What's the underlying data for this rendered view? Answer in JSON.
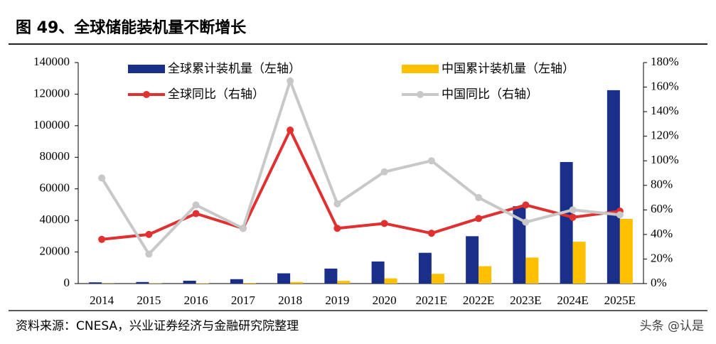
{
  "chart_data": {
    "type": "combo",
    "title": "图 49、全球储能装机量不断增长",
    "source": "资料来源：CNESA，兴业证券经济与金融研究院整理",
    "watermark": "头条 @认是",
    "categories": [
      "2014",
      "2015",
      "2016",
      "2017",
      "2018",
      "2019",
      "2020",
      "2021E",
      "2022E",
      "2023E",
      "2024E",
      "2025E"
    ],
    "series": [
      {
        "name": "全球累计装机量（左轴）",
        "type": "bar",
        "color": "#1a2f8a",
        "values": [
          800,
          1000,
          1800,
          2800,
          6500,
          9500,
          14000,
          19500,
          30000,
          49000,
          77000,
          122500
        ]
      },
      {
        "name": "中国累计装机量（左轴）",
        "type": "bar",
        "color": "#ffc000",
        "values": [
          100,
          150,
          250,
          400,
          1000,
          1700,
          3300,
          6200,
          11000,
          16500,
          26500,
          41000
        ]
      },
      {
        "name": "全球同比（右轴）",
        "type": "line",
        "axis": "y2",
        "color": "#e03030",
        "values": [
          36,
          40,
          57,
          45,
          125,
          45,
          49,
          41,
          53,
          64,
          54,
          59
        ]
      },
      {
        "name": "中国同比（右轴）",
        "type": "line",
        "axis": "y2",
        "color": "#c8c8c8",
        "values": [
          86,
          24,
          64,
          45,
          165,
          65,
          91,
          100,
          70,
          50,
          60,
          56
        ]
      }
    ],
    "ylim": [
      0,
      140000
    ],
    "yticks": [
      0,
      20000,
      40000,
      60000,
      80000,
      100000,
      120000,
      140000
    ],
    "y2lim": [
      0,
      180
    ],
    "y2ticks": [
      {
        "value": 0,
        "label": "0%"
      },
      {
        "value": 20,
        "label": "20%"
      },
      {
        "value": 40,
        "label": "40%"
      },
      {
        "value": 60,
        "label": "60%"
      },
      {
        "value": 80,
        "label": "80%"
      },
      {
        "value": 100,
        "label": "100%"
      },
      {
        "value": 120,
        "label": "120%"
      },
      {
        "value": 140,
        "label": "140%"
      },
      {
        "value": 160,
        "label": "160%"
      },
      {
        "value": 180,
        "label": "180%"
      }
    ]
  }
}
